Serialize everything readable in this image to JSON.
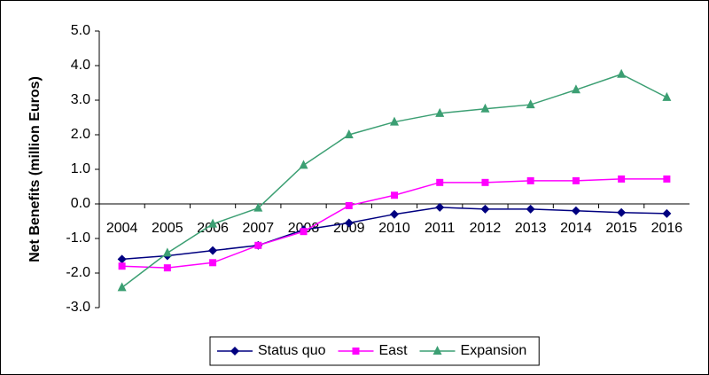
{
  "chart_data": {
    "type": "line",
    "y_label": "Net Benefits (million Euros)",
    "categories": [
      "2004",
      "2005",
      "2006",
      "2007",
      "2008",
      "2009",
      "2010",
      "2011",
      "2012",
      "2013",
      "2014",
      "2015",
      "2016"
    ],
    "series": [
      {
        "name": "Status quo",
        "color": "#000080",
        "marker": "diamond",
        "values": [
          -1.6,
          -1.5,
          -1.35,
          -1.2,
          -0.75,
          -0.55,
          -0.3,
          -0.1,
          -0.15,
          -0.15,
          -0.2,
          -0.25,
          -0.28
        ]
      },
      {
        "name": "East",
        "color": "#ff00ff",
        "marker": "square",
        "values": [
          -1.8,
          -1.85,
          -1.7,
          -1.2,
          -0.8,
          -0.05,
          0.25,
          0.62,
          0.62,
          0.67,
          0.67,
          0.72,
          0.72
        ]
      },
      {
        "name": "Expansion",
        "color": "#3c9f73",
        "marker": "triangle",
        "values": [
          -2.42,
          -1.42,
          -0.58,
          -0.12,
          1.12,
          2.0,
          2.37,
          2.62,
          2.75,
          2.87,
          3.3,
          3.75,
          3.08
        ]
      }
    ],
    "ylim": [
      -3,
      5
    ],
    "yticks": [
      {
        "value": -3,
        "label": "-3.0"
      },
      {
        "value": -2,
        "label": "-2.0"
      },
      {
        "value": -1,
        "label": "-1.0"
      },
      {
        "value": 0,
        "label": "0.0"
      },
      {
        "value": 1,
        "label": "1.0"
      },
      {
        "value": 2,
        "label": "2.0"
      },
      {
        "value": 3,
        "label": "3.0"
      },
      {
        "value": 4,
        "label": "4.0"
      },
      {
        "value": 5,
        "label": "5.0"
      }
    ],
    "grid": false,
    "legend": "bottom"
  }
}
